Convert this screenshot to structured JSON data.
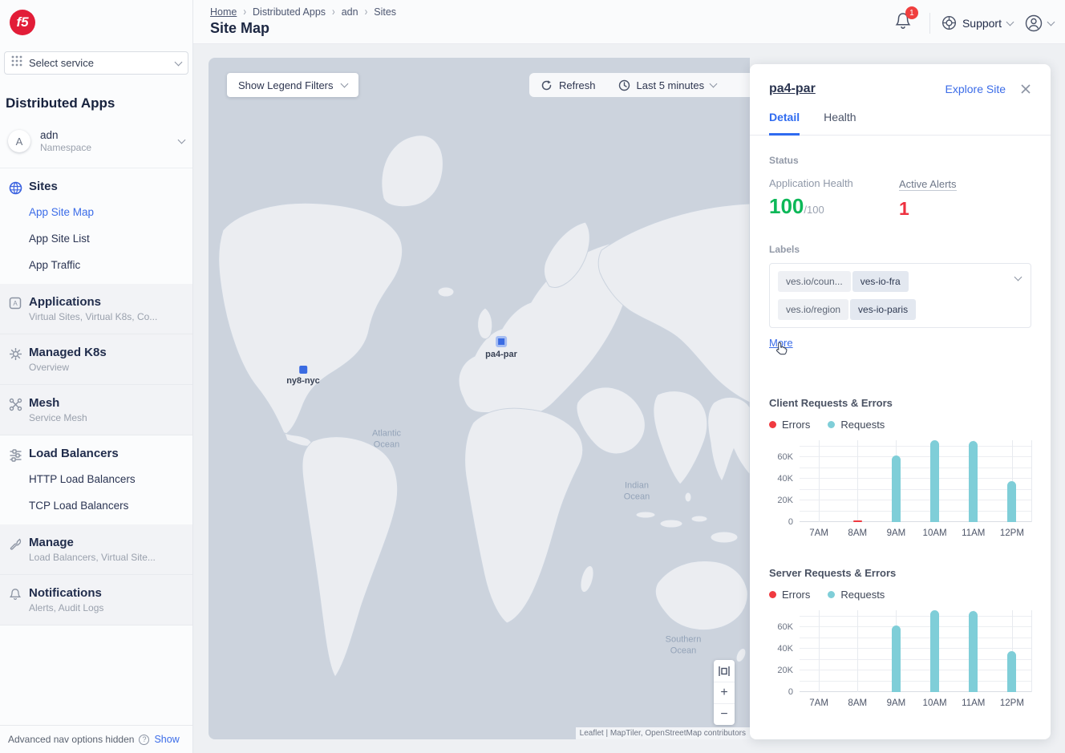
{
  "brand": {
    "logo_text": "f5"
  },
  "sidebar": {
    "select_service": "Select service",
    "section_title": "Distributed Apps",
    "namespace": {
      "initial": "A",
      "name": "adn",
      "type": "Namespace"
    },
    "groups": [
      {
        "label": "Sites",
        "items": [
          "App Site Map",
          "App Site List",
          "App Traffic"
        ],
        "active_item": "App Site Map"
      },
      {
        "label": "Applications",
        "subtitle": "Virtual Sites, Virtual K8s, Co..."
      },
      {
        "label": "Managed K8s",
        "subtitle": "Overview"
      },
      {
        "label": "Mesh",
        "subtitle": "Service Mesh"
      },
      {
        "label": "Load Balancers",
        "items": [
          "HTTP Load Balancers",
          "TCP Load Balancers"
        ]
      },
      {
        "label": "Manage",
        "subtitle": "Load Balancers, Virtual Site..."
      },
      {
        "label": "Notifications",
        "subtitle": "Alerts, Audit Logs"
      }
    ],
    "footer": {
      "text": "Advanced nav options hidden",
      "action": "Show"
    }
  },
  "header": {
    "breadcrumb": [
      "Home",
      "Distributed Apps",
      "adn",
      "Sites"
    ],
    "page_title": "Site Map",
    "notification_count": "1",
    "support_label": "Support"
  },
  "map": {
    "legend_button": "Show Legend Filters",
    "refresh_label": "Refresh",
    "time_range": "Last 5 minutes",
    "markers": [
      {
        "label": "ny8-nyc",
        "selected": false
      },
      {
        "label": "pa4-par",
        "selected": true
      }
    ],
    "ocean_labels": [
      "Atlantic Ocean",
      "Indian Ocean",
      "Southern Ocean"
    ],
    "zoom_in": "+",
    "zoom_out": "−",
    "attribution": "Leaflet | MapTiler, OpenStreetMap contributors",
    "colors": {
      "ocean": "#ccd3dd",
      "land": "#ebedf1",
      "marker_blue": "#3a6be2"
    }
  },
  "panel": {
    "title": "pa4-par",
    "explore_link": "Explore Site",
    "tabs": [
      "Detail",
      "Health"
    ],
    "active_tab": "Detail",
    "status": {
      "heading": "Status",
      "app_health_label": "Application Health",
      "app_health_value": "100",
      "app_health_total": "/100",
      "alerts_label": "Active Alerts",
      "alerts_value": "1",
      "health_color": "#0cb858",
      "alert_color": "#ee3140"
    },
    "labels": {
      "heading": "Labels",
      "more_link": "More",
      "pairs": [
        {
          "key": "ves.io/coun...",
          "value": "ves-io-fra"
        },
        {
          "key": "ves.io/region",
          "value": "ves-io-paris"
        }
      ]
    }
  },
  "chart_data": [
    {
      "type": "bar",
      "title": "Client Requests & Errors",
      "categories": [
        "7AM",
        "8AM",
        "9AM",
        "10AM",
        "11AM",
        "12PM"
      ],
      "series": [
        {
          "name": "Errors",
          "color": "#f03a40",
          "values": [
            0,
            1500,
            0,
            0,
            0,
            0
          ]
        },
        {
          "name": "Requests",
          "color": "#7fced8",
          "values": [
            0,
            0,
            62000,
            76000,
            75000,
            38000
          ]
        }
      ],
      "ylim": [
        0,
        76000
      ],
      "grid_step": 10000,
      "yticks": [
        {
          "v": 60000,
          "label": "60K"
        },
        {
          "v": 40000,
          "label": "40K"
        },
        {
          "v": 20000,
          "label": "20K"
        },
        {
          "v": 0,
          "label": "0"
        }
      ],
      "legend_position": "top"
    },
    {
      "type": "bar",
      "title": "Server Requests & Errors",
      "categories": [
        "7AM",
        "8AM",
        "9AM",
        "10AM",
        "11AM",
        "12PM"
      ],
      "series": [
        {
          "name": "Errors",
          "color": "#f03a40",
          "values": [
            0,
            0,
            0,
            0,
            0,
            0
          ]
        },
        {
          "name": "Requests",
          "color": "#7fced8",
          "values": [
            0,
            0,
            62000,
            76000,
            75000,
            38000
          ]
        }
      ],
      "ylim": [
        0,
        76000
      ],
      "grid_step": 10000,
      "yticks": [
        {
          "v": 60000,
          "label": "60K"
        },
        {
          "v": 40000,
          "label": "40K"
        },
        {
          "v": 20000,
          "label": "20K"
        },
        {
          "v": 0,
          "label": "0"
        }
      ],
      "legend_position": "top"
    }
  ]
}
